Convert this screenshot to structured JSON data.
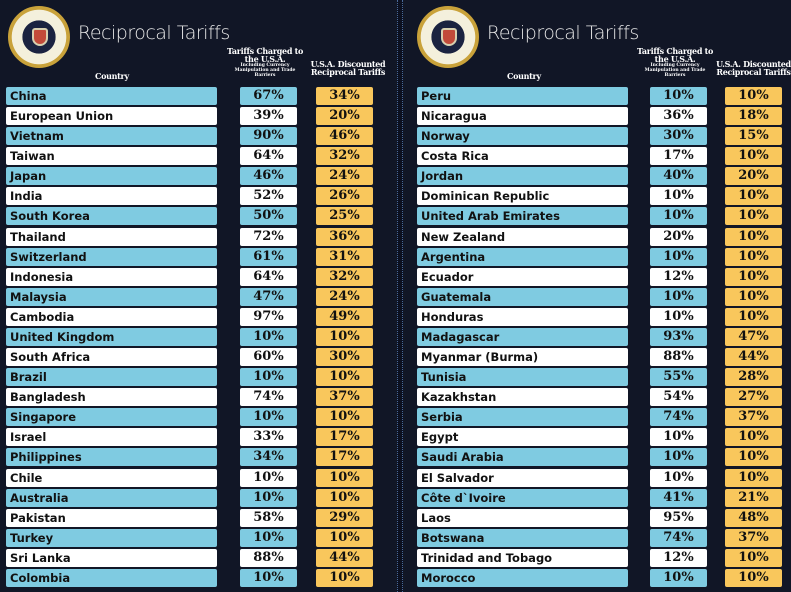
{
  "title": "Reciprocal Tariffs",
  "headers": {
    "country": "Country",
    "charged": "Tariffs Charged to the U.S.A.",
    "charged_note": "Including Currency Manipulation and Trade Barriers",
    "discounted": "U.S.A. Discounted Reciprocal Tariffs"
  },
  "colors": {
    "background": "#111626",
    "row_alt": "#7fcbe1",
    "row": "#ffffff",
    "discounted": "#f9c75c"
  },
  "left": [
    [
      "China",
      "67%",
      "34%"
    ],
    [
      "European Union",
      "39%",
      "20%"
    ],
    [
      "Vietnam",
      "90%",
      "46%"
    ],
    [
      "Taiwan",
      "64%",
      "32%"
    ],
    [
      "Japan",
      "46%",
      "24%"
    ],
    [
      "India",
      "52%",
      "26%"
    ],
    [
      "South Korea",
      "50%",
      "25%"
    ],
    [
      "Thailand",
      "72%",
      "36%"
    ],
    [
      "Switzerland",
      "61%",
      "31%"
    ],
    [
      "Indonesia",
      "64%",
      "32%"
    ],
    [
      "Malaysia",
      "47%",
      "24%"
    ],
    [
      "Cambodia",
      "97%",
      "49%"
    ],
    [
      "United Kingdom",
      "10%",
      "10%"
    ],
    [
      "South Africa",
      "60%",
      "30%"
    ],
    [
      "Brazil",
      "10%",
      "10%"
    ],
    [
      "Bangladesh",
      "74%",
      "37%"
    ],
    [
      "Singapore",
      "10%",
      "10%"
    ],
    [
      "Israel",
      "33%",
      "17%"
    ],
    [
      "Philippines",
      "34%",
      "17%"
    ],
    [
      "Chile",
      "10%",
      "10%"
    ],
    [
      "Australia",
      "10%",
      "10%"
    ],
    [
      "Pakistan",
      "58%",
      "29%"
    ],
    [
      "Turkey",
      "10%",
      "10%"
    ],
    [
      "Sri Lanka",
      "88%",
      "44%"
    ],
    [
      "Colombia",
      "10%",
      "10%"
    ]
  ],
  "right": [
    [
      "Peru",
      "10%",
      "10%"
    ],
    [
      "Nicaragua",
      "36%",
      "18%"
    ],
    [
      "Norway",
      "30%",
      "15%"
    ],
    [
      "Costa Rica",
      "17%",
      "10%"
    ],
    [
      "Jordan",
      "40%",
      "20%"
    ],
    [
      "Dominican Republic",
      "10%",
      "10%"
    ],
    [
      "United Arab Emirates",
      "10%",
      "10%"
    ],
    [
      "New Zealand",
      "20%",
      "10%"
    ],
    [
      "Argentina",
      "10%",
      "10%"
    ],
    [
      "Ecuador",
      "12%",
      "10%"
    ],
    [
      "Guatemala",
      "10%",
      "10%"
    ],
    [
      "Honduras",
      "10%",
      "10%"
    ],
    [
      "Madagascar",
      "93%",
      "47%"
    ],
    [
      "Myanmar (Burma)",
      "88%",
      "44%"
    ],
    [
      "Tunisia",
      "55%",
      "28%"
    ],
    [
      "Kazakhstan",
      "54%",
      "27%"
    ],
    [
      "Serbia",
      "74%",
      "37%"
    ],
    [
      "Egypt",
      "10%",
      "10%"
    ],
    [
      "Saudi Arabia",
      "10%",
      "10%"
    ],
    [
      "El Salvador",
      "10%",
      "10%"
    ],
    [
      "Côte d`Ivoire",
      "41%",
      "21%"
    ],
    [
      "Laos",
      "95%",
      "48%"
    ],
    [
      "Botswana",
      "74%",
      "37%"
    ],
    [
      "Trinidad and Tobago",
      "12%",
      "10%"
    ],
    [
      "Morocco",
      "10%",
      "10%"
    ]
  ]
}
